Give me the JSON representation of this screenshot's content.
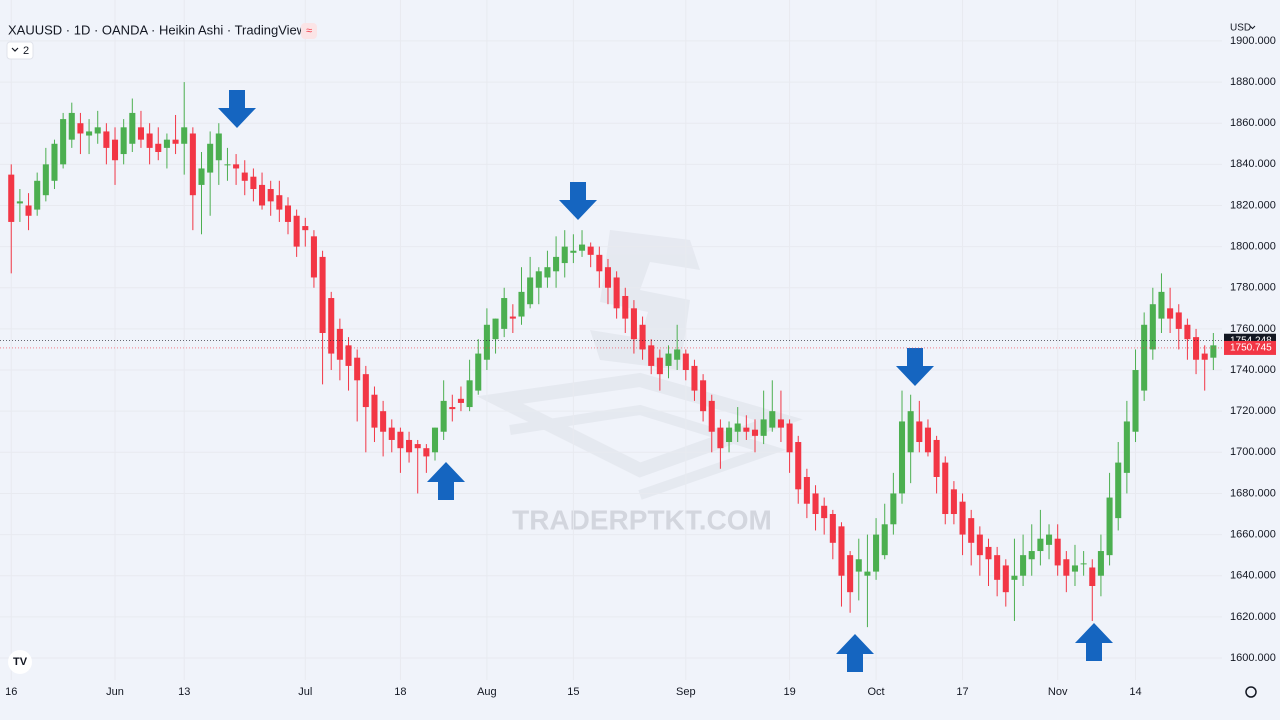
{
  "chart_data": {
    "type": "candlestick",
    "title": "XAUUSD · 1D · OANDA · Heikin Ashi · TradingView",
    "indicator_count": 2,
    "currency": "USD",
    "watermark": "TRADERPTKT.COM",
    "up_color": "#4caf50",
    "down_color": "#f23645",
    "xlim": [
      -1.3,
      140
    ],
    "ylim": [
      1589.3,
      1919.9
    ],
    "yticks": [
      {
        "value": 1600,
        "label": "1600.000"
      },
      {
        "value": 1620,
        "label": "1620.000"
      },
      {
        "value": 1640,
        "label": "1640.000"
      },
      {
        "value": 1660,
        "label": "1660.000"
      },
      {
        "value": 1680,
        "label": "1680.000"
      },
      {
        "value": 1700,
        "label": "1700.000"
      },
      {
        "value": 1720,
        "label": "1720.000"
      },
      {
        "value": 1740,
        "label": "1740.000"
      },
      {
        "value": 1760,
        "label": "1760.000"
      },
      {
        "value": 1780,
        "label": "1780.000"
      },
      {
        "value": 1800,
        "label": "1800.000"
      },
      {
        "value": 1820,
        "label": "1820.000"
      },
      {
        "value": 1840,
        "label": "1840.000"
      },
      {
        "value": 1860,
        "label": "1860.000"
      },
      {
        "value": 1880,
        "label": "1880.000"
      },
      {
        "value": 1900,
        "label": "1900.000"
      }
    ],
    "xticks": [
      {
        "value": 0,
        "label": "16"
      },
      {
        "value": 12,
        "label": "Jun"
      },
      {
        "value": 20,
        "label": "13"
      },
      {
        "value": 34,
        "label": "Jul"
      },
      {
        "value": 45,
        "label": "18"
      },
      {
        "value": 55,
        "label": "Aug"
      },
      {
        "value": 65,
        "label": "15"
      },
      {
        "value": 78,
        "label": "Sep"
      },
      {
        "value": 90,
        "label": "19"
      },
      {
        "value": 100,
        "label": "Oct"
      },
      {
        "value": 110,
        "label": "17"
      },
      {
        "value": 121,
        "label": "Nov"
      },
      {
        "value": 130,
        "label": "14"
      }
    ],
    "price_labels": [
      {
        "value": 1754.248,
        "color": "#131722"
      },
      {
        "value": 1750.745,
        "color": "#f23645"
      }
    ],
    "ohlc": [
      [
        1835,
        1840,
        1787,
        1812
      ],
      [
        1821,
        1828,
        1812,
        1822
      ],
      [
        1820,
        1826,
        1808,
        1815
      ],
      [
        1818,
        1836,
        1815,
        1832
      ],
      [
        1825,
        1848,
        1822,
        1840
      ],
      [
        1832,
        1852,
        1828,
        1850
      ],
      [
        1840,
        1865,
        1838,
        1862
      ],
      [
        1852,
        1870,
        1848,
        1865
      ],
      [
        1860,
        1865,
        1845,
        1855
      ],
      [
        1854,
        1862,
        1845,
        1856
      ],
      [
        1855,
        1866,
        1850,
        1858
      ],
      [
        1856,
        1860,
        1840,
        1848
      ],
      [
        1852,
        1858,
        1830,
        1842
      ],
      [
        1845,
        1862,
        1840,
        1858
      ],
      [
        1850,
        1872,
        1846,
        1865
      ],
      [
        1858,
        1866,
        1848,
        1852
      ],
      [
        1855,
        1860,
        1840,
        1848
      ],
      [
        1850,
        1858,
        1842,
        1846
      ],
      [
        1848,
        1855,
        1838,
        1852
      ],
      [
        1852,
        1864,
        1845,
        1850
      ],
      [
        1850,
        1880,
        1835,
        1858
      ],
      [
        1855,
        1858,
        1808,
        1825
      ],
      [
        1830,
        1846,
        1806,
        1838
      ],
      [
        1836,
        1856,
        1815,
        1850
      ],
      [
        1842,
        1860,
        1830,
        1855
      ],
      [
        1840,
        1848,
        1832,
        1840
      ],
      [
        1840,
        1845,
        1830,
        1838
      ],
      [
        1836,
        1842,
        1825,
        1832
      ],
      [
        1834,
        1838,
        1822,
        1828
      ],
      [
        1830,
        1836,
        1818,
        1820
      ],
      [
        1828,
        1832,
        1815,
        1822
      ],
      [
        1825,
        1832,
        1812,
        1818
      ],
      [
        1820,
        1824,
        1806,
        1812
      ],
      [
        1815,
        1818,
        1795,
        1800
      ],
      [
        1810,
        1814,
        1800,
        1808
      ],
      [
        1805,
        1808,
        1780,
        1785
      ],
      [
        1795,
        1798,
        1733,
        1758
      ],
      [
        1775,
        1778,
        1740,
        1748
      ],
      [
        1760,
        1765,
        1735,
        1745
      ],
      [
        1752,
        1756,
        1730,
        1742
      ],
      [
        1746,
        1750,
        1715,
        1735
      ],
      [
        1738,
        1742,
        1700,
        1722
      ],
      [
        1728,
        1732,
        1705,
        1712
      ],
      [
        1720,
        1725,
        1698,
        1710
      ],
      [
        1712,
        1716,
        1700,
        1706
      ],
      [
        1710,
        1712,
        1690,
        1702
      ],
      [
        1706,
        1710,
        1695,
        1700
      ],
      [
        1704,
        1706,
        1680,
        1702
      ],
      [
        1702,
        1704,
        1690,
        1698
      ],
      [
        1700,
        1712,
        1696,
        1712
      ],
      [
        1710,
        1735,
        1706,
        1725
      ],
      [
        1722,
        1728,
        1715,
        1721
      ],
      [
        1726,
        1732,
        1720,
        1724
      ],
      [
        1722,
        1745,
        1720,
        1735
      ],
      [
        1730,
        1755,
        1728,
        1748
      ],
      [
        1745,
        1770,
        1740,
        1762
      ],
      [
        1755,
        1765,
        1748,
        1765
      ],
      [
        1760,
        1780,
        1756,
        1775
      ],
      [
        1766,
        1772,
        1758,
        1765
      ],
      [
        1766,
        1790,
        1762,
        1778
      ],
      [
        1772,
        1795,
        1770,
        1785
      ],
      [
        1780,
        1790,
        1772,
        1788
      ],
      [
        1785,
        1798,
        1780,
        1790
      ],
      [
        1788,
        1805,
        1780,
        1795
      ],
      [
        1792,
        1808,
        1785,
        1800
      ],
      [
        1797,
        1806,
        1792,
        1798
      ],
      [
        1798,
        1808,
        1795,
        1801
      ],
      [
        1800,
        1802,
        1790,
        1796
      ],
      [
        1796,
        1800,
        1780,
        1788
      ],
      [
        1790,
        1794,
        1772,
        1780
      ],
      [
        1785,
        1788,
        1765,
        1770
      ],
      [
        1776,
        1780,
        1758,
        1765
      ],
      [
        1770,
        1774,
        1748,
        1755
      ],
      [
        1762,
        1766,
        1745,
        1750
      ],
      [
        1752,
        1755,
        1738,
        1742
      ],
      [
        1746,
        1750,
        1730,
        1738
      ],
      [
        1742,
        1752,
        1736,
        1748
      ],
      [
        1745,
        1762,
        1740,
        1750
      ],
      [
        1748,
        1750,
        1735,
        1740
      ],
      [
        1742,
        1745,
        1725,
        1730
      ],
      [
        1735,
        1738,
        1715,
        1720
      ],
      [
        1725,
        1728,
        1700,
        1710
      ],
      [
        1712,
        1716,
        1692,
        1702
      ],
      [
        1705,
        1715,
        1700,
        1712
      ],
      [
        1710,
        1722,
        1705,
        1714
      ],
      [
        1712,
        1718,
        1706,
        1710
      ],
      [
        1711,
        1716,
        1700,
        1708
      ],
      [
        1708,
        1730,
        1704,
        1716
      ],
      [
        1712,
        1735,
        1710,
        1720
      ],
      [
        1716,
        1730,
        1705,
        1712
      ],
      [
        1714,
        1716,
        1690,
        1700
      ],
      [
        1705,
        1708,
        1675,
        1682
      ],
      [
        1688,
        1692,
        1668,
        1675
      ],
      [
        1680,
        1684,
        1662,
        1670
      ],
      [
        1674,
        1678,
        1660,
        1668
      ],
      [
        1670,
        1672,
        1648,
        1656
      ],
      [
        1664,
        1666,
        1625,
        1640
      ],
      [
        1650,
        1652,
        1622,
        1632
      ],
      [
        1642,
        1658,
        1628,
        1648
      ],
      [
        1640,
        1660,
        1615,
        1642
      ],
      [
        1642,
        1668,
        1638,
        1660
      ],
      [
        1650,
        1675,
        1648,
        1665
      ],
      [
        1665,
        1690,
        1660,
        1680
      ],
      [
        1680,
        1730,
        1675,
        1715
      ],
      [
        1700,
        1728,
        1685,
        1720
      ],
      [
        1715,
        1725,
        1700,
        1705
      ],
      [
        1712,
        1716,
        1698,
        1700
      ],
      [
        1706,
        1708,
        1680,
        1688
      ],
      [
        1695,
        1698,
        1665,
        1670
      ],
      [
        1682,
        1686,
        1665,
        1670
      ],
      [
        1676,
        1680,
        1650,
        1660
      ],
      [
        1668,
        1672,
        1645,
        1656
      ],
      [
        1660,
        1664,
        1640,
        1650
      ],
      [
        1654,
        1658,
        1635,
        1648
      ],
      [
        1650,
        1654,
        1630,
        1638
      ],
      [
        1645,
        1648,
        1625,
        1632
      ],
      [
        1638,
        1658,
        1618,
        1640
      ],
      [
        1640,
        1660,
        1635,
        1650
      ],
      [
        1648,
        1665,
        1640,
        1652
      ],
      [
        1652,
        1672,
        1645,
        1658
      ],
      [
        1655,
        1665,
        1648,
        1660
      ],
      [
        1658,
        1665,
        1640,
        1645
      ],
      [
        1648,
        1652,
        1632,
        1640
      ],
      [
        1642,
        1655,
        1635,
        1645
      ],
      [
        1646,
        1652,
        1640,
        1646
      ],
      [
        1644,
        1648,
        1618,
        1635
      ],
      [
        1640,
        1660,
        1630,
        1652
      ],
      [
        1650,
        1690,
        1645,
        1678
      ],
      [
        1668,
        1705,
        1662,
        1695
      ],
      [
        1690,
        1725,
        1680,
        1715
      ],
      [
        1710,
        1750,
        1705,
        1740
      ],
      [
        1730,
        1768,
        1725,
        1762
      ],
      [
        1750,
        1780,
        1745,
        1772
      ],
      [
        1765,
        1787,
        1758,
        1778
      ],
      [
        1770,
        1780,
        1758,
        1765
      ],
      [
        1768,
        1772,
        1750,
        1760
      ],
      [
        1762,
        1765,
        1745,
        1755
      ],
      [
        1756,
        1760,
        1738,
        1745
      ],
      [
        1748,
        1752,
        1730,
        1745
      ],
      [
        1746,
        1758,
        1740,
        1752
      ]
    ]
  }
}
